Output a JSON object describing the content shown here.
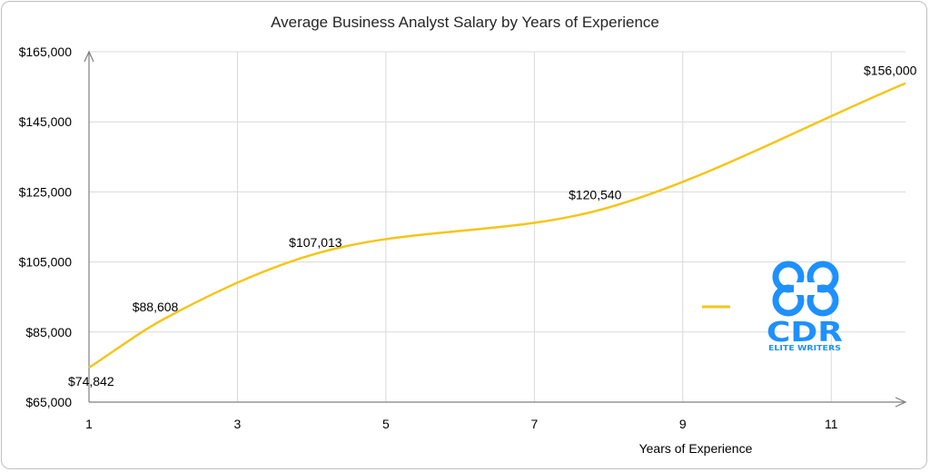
{
  "chart_data": {
    "type": "line",
    "title": "Average Business Analyst Salary by Years of Experience",
    "xlabel": "Years of Experience",
    "ylabel": "",
    "xlim": [
      1,
      12
    ],
    "ylim": [
      65000,
      165000
    ],
    "x_ticks": [
      1,
      3,
      5,
      7,
      9,
      11
    ],
    "y_ticks": [
      65000,
      85000,
      105000,
      125000,
      145000,
      165000
    ],
    "y_tick_labels": [
      "$65,000",
      "$85,000",
      "$105,000",
      "$125,000",
      "$145,000",
      "$165,000"
    ],
    "grid": true,
    "legend": "right",
    "series": [
      {
        "color": "#f5c518",
        "x": [
          1,
          2,
          4,
          8,
          12
        ],
        "values": [
          74842,
          88608,
          107013,
          120540,
          156000
        ],
        "labels": [
          "$74,842",
          "$88,608",
          "$107,013",
          "$120,540",
          "$156,000"
        ]
      }
    ]
  },
  "logo": {
    "text": "CDR",
    "subtext": "ELITE WRITERS",
    "color": "#1e90ff"
  }
}
